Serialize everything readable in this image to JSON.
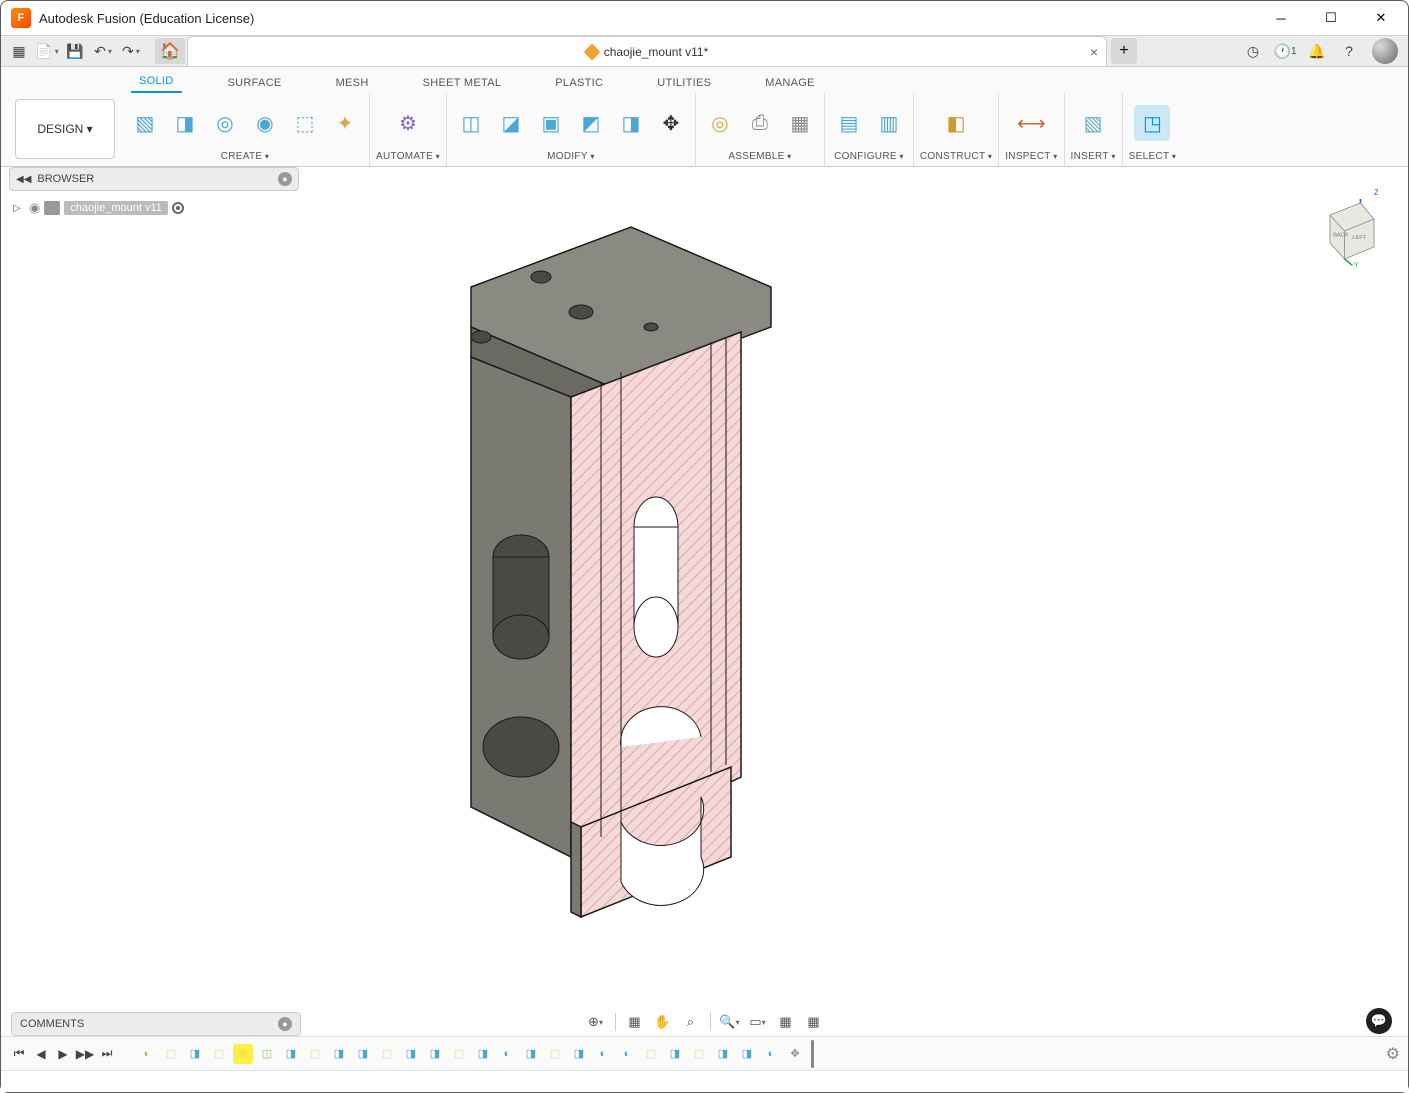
{
  "app": {
    "title": "Autodesk Fusion (Education License)",
    "icon_letter": "F"
  },
  "document": {
    "tab_name": "chaojie_mount v11*"
  },
  "qat_right": {
    "job_count": "1"
  },
  "workspace_button": "DESIGN ▾",
  "ribbon_tabs": [
    "SOLID",
    "SURFACE",
    "MESH",
    "SHEET METAL",
    "PLASTIC",
    "UTILITIES",
    "MANAGE"
  ],
  "ribbon_active_tab": 0,
  "ribbon_groups": [
    {
      "label": "CREATE",
      "icons": [
        {
          "glyph": "▧",
          "color": "#4aa8d8",
          "name": "sketch"
        },
        {
          "glyph": "◨",
          "color": "#4aa8d8",
          "name": "extrude"
        },
        {
          "glyph": "◎",
          "color": "#4aa8d8",
          "name": "revolve"
        },
        {
          "glyph": "◉",
          "color": "#4aa8d8",
          "name": "sweep"
        },
        {
          "glyph": "⬚",
          "color": "#4aa8d8",
          "name": "loft"
        },
        {
          "glyph": "✦",
          "color": "#d8a84a",
          "name": "generative"
        }
      ]
    },
    {
      "label": "AUTOMATE",
      "icons": [
        {
          "glyph": "⚙",
          "color": "#8866cc",
          "name": "automate"
        }
      ]
    },
    {
      "label": "MODIFY",
      "icons": [
        {
          "glyph": "◫",
          "color": "#4aa8d8",
          "name": "press-pull"
        },
        {
          "glyph": "◪",
          "color": "#4aa8d8",
          "name": "fillet"
        },
        {
          "glyph": "▣",
          "color": "#4aa8d8",
          "name": "shell"
        },
        {
          "glyph": "◩",
          "color": "#4aa8d8",
          "name": "combine"
        },
        {
          "glyph": "◨",
          "color": "#4aa8d8",
          "name": "split"
        },
        {
          "glyph": "✥",
          "color": "#333",
          "name": "move"
        }
      ]
    },
    {
      "label": "ASSEMBLE",
      "icons": [
        {
          "glyph": "◎",
          "color": "#d8a84a",
          "name": "joint"
        },
        {
          "glyph": "⎙",
          "color": "#888",
          "name": "as-built"
        },
        {
          "glyph": "▦",
          "color": "#888",
          "name": "contact"
        }
      ]
    },
    {
      "label": "CONFIGURE",
      "icons": [
        {
          "glyph": "▤",
          "color": "#4aa8d8",
          "name": "config1"
        },
        {
          "glyph": "▥",
          "color": "#4aa8d8",
          "name": "config2"
        }
      ]
    },
    {
      "label": "CONSTRUCT",
      "icons": [
        {
          "glyph": "◧",
          "color": "#cc9933",
          "name": "plane"
        }
      ]
    },
    {
      "label": "INSPECT",
      "icons": [
        {
          "glyph": "⟷",
          "color": "#cc6633",
          "name": "measure"
        }
      ]
    },
    {
      "label": "INSERT",
      "icons": [
        {
          "glyph": "▧",
          "color": "#66aacc",
          "name": "insert"
        }
      ]
    },
    {
      "label": "SELECT",
      "icons": [
        {
          "glyph": "◳",
          "color": "#0696d7",
          "name": "select",
          "active": true
        }
      ]
    }
  ],
  "browser": {
    "title": "BROWSER",
    "root_item": "chaojie_mount v11"
  },
  "comments": {
    "title": "COMMENTS"
  },
  "navbar_icons": [
    "⊕",
    "▦",
    "✋",
    "⌕",
    "🔍",
    "▭",
    "▦",
    "▦"
  ],
  "viewcube": {
    "faces": [
      "BACK",
      "LEFT"
    ],
    "axes": [
      "Z",
      "Y"
    ]
  },
  "timeline": {
    "items": [
      {
        "color": "#d8a84a",
        "glyph": "◐"
      },
      {
        "color": "#e8d898",
        "glyph": "▢"
      },
      {
        "color": "#4aa8d8",
        "glyph": "◨"
      },
      {
        "color": "#e8d898",
        "glyph": "▢"
      },
      {
        "color": "#e8e84a",
        "glyph": "▣",
        "hl": true
      },
      {
        "color": "#88cc66",
        "glyph": "◫"
      },
      {
        "color": "#4aa8d8",
        "glyph": "◨"
      },
      {
        "color": "#e8d898",
        "glyph": "▢"
      },
      {
        "color": "#4aa8d8",
        "glyph": "◨"
      },
      {
        "color": "#4aa8d8",
        "glyph": "◨"
      },
      {
        "color": "#e8d898",
        "glyph": "▢"
      },
      {
        "color": "#4aa8d8",
        "glyph": "◨"
      },
      {
        "color": "#4aa8d8",
        "glyph": "◨"
      },
      {
        "color": "#e8d898",
        "glyph": "▢"
      },
      {
        "color": "#4aa8d8",
        "glyph": "◨"
      },
      {
        "color": "#4aa8d8",
        "glyph": "◐"
      },
      {
        "color": "#4aa8d8",
        "glyph": "◨"
      },
      {
        "color": "#e8d898",
        "glyph": "▢"
      },
      {
        "color": "#4aa8d8",
        "glyph": "◨"
      },
      {
        "color": "#4aa8d8",
        "glyph": "◐"
      },
      {
        "color": "#4aa8d8",
        "glyph": "◐"
      },
      {
        "color": "#e8d898",
        "glyph": "▢"
      },
      {
        "color": "#4aa8d8",
        "glyph": "◨"
      },
      {
        "color": "#e8d898",
        "glyph": "▢"
      },
      {
        "color": "#4aa8d8",
        "glyph": "◨"
      },
      {
        "color": "#4aa8d8",
        "glyph": "◨"
      },
      {
        "color": "#4aa8d8",
        "glyph": "◐"
      },
      {
        "color": "#888888",
        "glyph": "✥"
      }
    ]
  },
  "model_svg": {
    "body_fill": "#7a7a72",
    "body_stroke": "#1a1a1a",
    "section_fill": "#f5d8d8",
    "section_stroke": "#c8888a",
    "top_fill": "#8a8a82"
  }
}
